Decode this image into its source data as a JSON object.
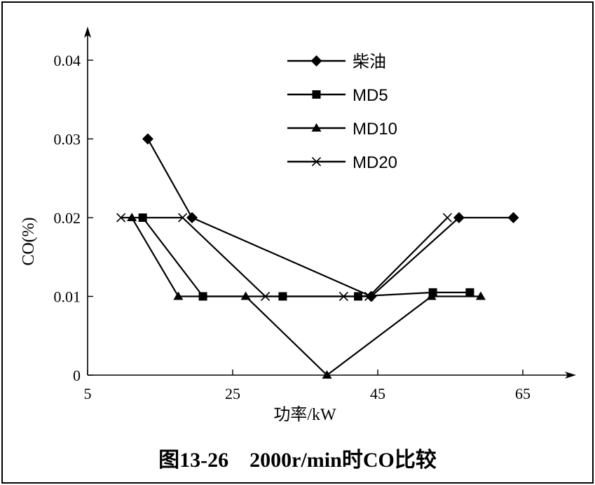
{
  "caption": "图13-26    2000r/min时CO比较",
  "chart_data": {
    "type": "line",
    "title": "",
    "xlabel": "功率/kW",
    "ylabel": "CO(%)",
    "xlim": [
      5,
      75
    ],
    "ylim": [
      0,
      0.044
    ],
    "x_ticks": [
      "5",
      "25",
      "45",
      "65"
    ],
    "y_ticks": [
      "0",
      "0.01",
      "0.02",
      "0.03",
      "0.04"
    ],
    "legend_position": "top-center",
    "series": [
      {
        "name": "柴油",
        "marker": "diamond",
        "x": [
          13.3,
          19.4,
          44.1,
          56.2,
          63.7
        ],
        "y": [
          0.03,
          0.02,
          0.01,
          0.02,
          0.02
        ]
      },
      {
        "name": "MD5",
        "marker": "square",
        "x": [
          12.6,
          20.9,
          31.9,
          42.3,
          52.6,
          57.7
        ],
        "y": [
          0.02,
          0.01,
          0.01,
          0.01,
          0.0105,
          0.0105
        ]
      },
      {
        "name": "MD10",
        "marker": "triangle",
        "x": [
          11.1,
          17.5,
          26.8,
          38.0,
          52.4,
          59.2
        ],
        "y": [
          0.02,
          0.01,
          0.01,
          0.0,
          0.01,
          0.01
        ]
      },
      {
        "name": "MD20",
        "marker": "x",
        "x": [
          9.6,
          18.1,
          29.5,
          40.3,
          43.8,
          54.6
        ],
        "y": [
          0.02,
          0.02,
          0.01,
          0.01,
          0.01,
          0.02
        ]
      }
    ]
  }
}
